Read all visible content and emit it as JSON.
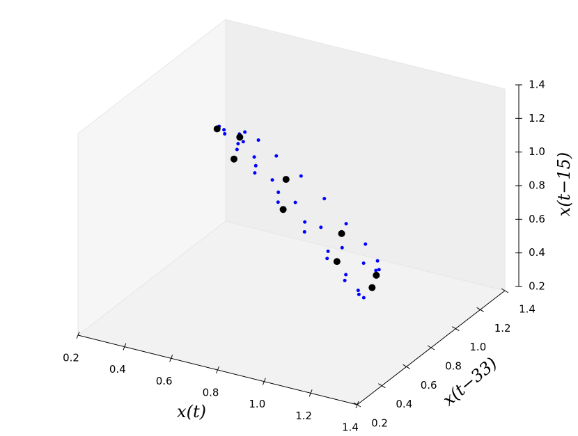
{
  "chart_data": {
    "type": "scatter3d",
    "x_label": "x(t)",
    "y_label": "x(t−33)",
    "z_label": "x(t−15)",
    "xlim": [
      0.2,
      1.4
    ],
    "ylim": [
      0.2,
      1.4
    ],
    "zlim": [
      0.2,
      1.4
    ],
    "xticks": [
      0.2,
      0.4,
      0.6,
      0.8,
      {
        "value": 1,
        "label": "1.0"
      },
      1.2,
      1.4
    ],
    "yticks": [
      0.2,
      0.4,
      0.6,
      0.8,
      {
        "value": 1,
        "label": "1.0"
      },
      1.2,
      1.4
    ],
    "zticks": [
      0.2,
      0.4,
      0.6,
      0.8,
      {
        "value": 1,
        "label": "1.0"
      },
      1.2,
      1.4
    ],
    "series": [
      {
        "color": "#0000ff",
        "x": [
          0.8,
          0.95,
          1.09,
          1.19,
          1.24,
          1.24,
          1.19,
          1.09,
          0.95,
          0.8,
          0.65,
          0.51,
          0.41,
          0.36,
          0.36,
          0.41,
          0.51,
          0.65,
          0.85,
          0.97,
          1.08,
          1.15,
          1.2,
          1.2,
          1.15,
          1.08,
          0.97,
          0.85,
          0.73,
          0.63,
          0.55,
          0.51,
          0.51,
          0.55,
          0.63,
          0.73
        ],
        "y": [
          1.09,
          0.95,
          0.8,
          0.65,
          0.51,
          0.41,
          0.36,
          0.36,
          0.41,
          0.51,
          0.65,
          0.8,
          0.95,
          1.09,
          1.19,
          1.24,
          1.24,
          1.19,
          1.15,
          1.08,
          0.97,
          0.85,
          0.73,
          0.63,
          0.55,
          0.51,
          0.51,
          0.55,
          0.63,
          0.73,
          0.85,
          0.97,
          1.08,
          1.15,
          1.2,
          1.2
        ],
        "z": [
          0.36,
          0.36,
          0.41,
          0.51,
          0.65,
          0.8,
          0.95,
          1.09,
          1.19,
          1.24,
          1.24,
          1.19,
          1.09,
          0.95,
          0.8,
          0.65,
          0.51,
          0.41,
          0.55,
          0.51,
          0.51,
          0.55,
          0.63,
          0.73,
          0.85,
          0.97,
          1.08,
          1.15,
          1.2,
          1.2,
          1.15,
          1.08,
          0.97,
          0.85,
          0.73,
          0.63
        ]
      },
      {
        "color": "#000000",
        "x": [
          0.82,
          1.08,
          1.21,
          1.17,
          0.96,
          0.68,
          0.47,
          0.43,
          0.56
        ],
        "y": [
          1.17,
          0.96,
          0.68,
          0.47,
          0.43,
          0.56,
          0.82,
          1.08,
          1.21
        ],
        "z": [
          0.47,
          0.43,
          0.56,
          0.82,
          1.08,
          1.21,
          1.17,
          0.96,
          0.68
        ]
      }
    ]
  }
}
